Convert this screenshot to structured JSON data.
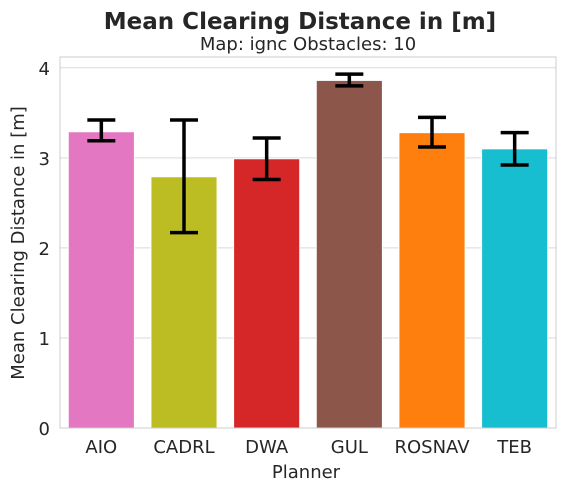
{
  "chart_data": {
    "type": "bar",
    "title": "Mean Clearing Distance in [m]",
    "subtitle": "Map: ignc Obstacles: 10",
    "xlabel": "Planner",
    "ylabel": "Mean Clearing Distance in [m]",
    "ylim": [
      0,
      4.12
    ],
    "yticks": [
      0,
      1,
      2,
      3,
      4
    ],
    "grid": true,
    "categories": [
      "AIO",
      "CADRL",
      "DWA",
      "GUL",
      "ROSNAV",
      "TEB"
    ],
    "values": [
      3.29,
      2.79,
      2.99,
      3.86,
      3.28,
      3.1
    ],
    "error_low": [
      3.19,
      2.17,
      2.76,
      3.8,
      3.12,
      2.92
    ],
    "error_high": [
      3.42,
      3.42,
      3.22,
      3.93,
      3.45,
      3.28
    ],
    "colors": [
      "#e377c2",
      "#bcbd22",
      "#d62728",
      "#8c564b",
      "#ff7f0e",
      "#17becf"
    ]
  }
}
